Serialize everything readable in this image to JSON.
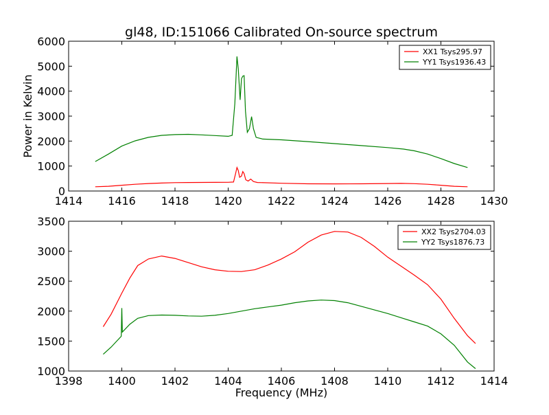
{
  "chart_data": [
    {
      "type": "line",
      "title": "gl48, ID:151066 Calibrated On-source spectrum",
      "xlabel": "",
      "ylabel": "Power in Kelvin",
      "xlim": [
        1414,
        1430
      ],
      "ylim": [
        0,
        6000
      ],
      "xticks": [
        1414,
        1416,
        1418,
        1420,
        1422,
        1424,
        1426,
        1428,
        1430
      ],
      "yticks": [
        0,
        1000,
        2000,
        3000,
        4000,
        5000,
        6000
      ],
      "legend_position": "top-right",
      "series": [
        {
          "name": "XX1 Tsys295.97",
          "color": "#ff0000",
          "points": [
            [
              1415.0,
              170
            ],
            [
              1415.5,
              190
            ],
            [
              1416.0,
              230
            ],
            [
              1416.5,
              270
            ],
            [
              1417.0,
              300
            ],
            [
              1417.5,
              320
            ],
            [
              1418.0,
              335
            ],
            [
              1418.5,
              340
            ],
            [
              1419.0,
              345
            ],
            [
              1419.5,
              348
            ],
            [
              1420.0,
              350
            ],
            [
              1420.2,
              360
            ],
            [
              1420.28,
              700
            ],
            [
              1420.33,
              940
            ],
            [
              1420.38,
              820
            ],
            [
              1420.43,
              550
            ],
            [
              1420.5,
              600
            ],
            [
              1420.55,
              780
            ],
            [
              1420.6,
              700
            ],
            [
              1420.66,
              450
            ],
            [
              1420.75,
              400
            ],
            [
              1420.85,
              480
            ],
            [
              1420.95,
              380
            ],
            [
              1421.1,
              340
            ],
            [
              1422.0,
              310
            ],
            [
              1423.0,
              290
            ],
            [
              1424.0,
              285
            ],
            [
              1425.0,
              290
            ],
            [
              1426.0,
              300
            ],
            [
              1426.5,
              305
            ],
            [
              1427.0,
              295
            ],
            [
              1427.5,
              270
            ],
            [
              1428.0,
              230
            ],
            [
              1428.5,
              190
            ],
            [
              1429.0,
              170
            ]
          ]
        },
        {
          "name": "YY1 Tsys1936.43",
          "color": "#008000",
          "points": [
            [
              1415.0,
              1180
            ],
            [
              1415.5,
              1480
            ],
            [
              1416.0,
              1800
            ],
            [
              1416.5,
              2010
            ],
            [
              1417.0,
              2150
            ],
            [
              1417.5,
              2230
            ],
            [
              1418.0,
              2260
            ],
            [
              1418.5,
              2270
            ],
            [
              1419.0,
              2250
            ],
            [
              1419.5,
              2220
            ],
            [
              1420.0,
              2190
            ],
            [
              1420.15,
              2230
            ],
            [
              1420.25,
              3500
            ],
            [
              1420.33,
              5390
            ],
            [
              1420.38,
              4900
            ],
            [
              1420.45,
              3650
            ],
            [
              1420.5,
              4500
            ],
            [
              1420.55,
              4600
            ],
            [
              1420.6,
              4620
            ],
            [
              1420.65,
              3200
            ],
            [
              1420.72,
              2350
            ],
            [
              1420.8,
              2500
            ],
            [
              1420.88,
              2980
            ],
            [
              1420.95,
              2500
            ],
            [
              1421.05,
              2150
            ],
            [
              1421.3,
              2080
            ],
            [
              1422.0,
              2050
            ],
            [
              1423.0,
              1980
            ],
            [
              1424.0,
              1900
            ],
            [
              1425.0,
              1820
            ],
            [
              1426.0,
              1740
            ],
            [
              1426.6,
              1680
            ],
            [
              1427.0,
              1610
            ],
            [
              1427.5,
              1480
            ],
            [
              1428.0,
              1300
            ],
            [
              1428.5,
              1100
            ],
            [
              1429.0,
              940
            ]
          ]
        }
      ]
    },
    {
      "type": "line",
      "title": "",
      "xlabel": "Frequency (MHz)",
      "ylabel": "",
      "xlim": [
        1398,
        1414
      ],
      "ylim": [
        1000,
        3500
      ],
      "xticks": [
        1398,
        1400,
        1402,
        1404,
        1406,
        1408,
        1410,
        1412,
        1414
      ],
      "yticks": [
        1000,
        1500,
        2000,
        2500,
        3000,
        3500
      ],
      "legend_position": "top-right",
      "series": [
        {
          "name": "XX2 Tsys2704.03",
          "color": "#ff0000",
          "points": [
            [
              1399.3,
              1740
            ],
            [
              1399.6,
              1950
            ],
            [
              1400.0,
              2300
            ],
            [
              1400.3,
              2550
            ],
            [
              1400.6,
              2760
            ],
            [
              1401.0,
              2870
            ],
            [
              1401.5,
              2920
            ],
            [
              1402.0,
              2880
            ],
            [
              1402.5,
              2810
            ],
            [
              1403.0,
              2740
            ],
            [
              1403.5,
              2690
            ],
            [
              1404.0,
              2665
            ],
            [
              1404.5,
              2660
            ],
            [
              1405.0,
              2690
            ],
            [
              1405.5,
              2770
            ],
            [
              1406.0,
              2870
            ],
            [
              1406.5,
              2990
            ],
            [
              1407.0,
              3150
            ],
            [
              1407.5,
              3270
            ],
            [
              1408.0,
              3330
            ],
            [
              1408.5,
              3320
            ],
            [
              1409.0,
              3230
            ],
            [
              1409.5,
              3080
            ],
            [
              1410.0,
              2900
            ],
            [
              1410.5,
              2750
            ],
            [
              1411.0,
              2600
            ],
            [
              1411.5,
              2440
            ],
            [
              1412.0,
              2200
            ],
            [
              1412.5,
              1880
            ],
            [
              1413.0,
              1590
            ],
            [
              1413.3,
              1460
            ]
          ]
        },
        {
          "name": "YY2 Tsys1876.73",
          "color": "#008000",
          "points": [
            [
              1399.3,
              1280
            ],
            [
              1399.6,
              1400
            ],
            [
              1399.98,
              1580
            ],
            [
              1400.0,
              2050
            ],
            [
              1400.02,
              1650
            ],
            [
              1400.3,
              1780
            ],
            [
              1400.6,
              1880
            ],
            [
              1401.0,
              1925
            ],
            [
              1401.5,
              1935
            ],
            [
              1402.0,
              1930
            ],
            [
              1402.5,
              1920
            ],
            [
              1403.0,
              1915
            ],
            [
              1403.5,
              1930
            ],
            [
              1404.0,
              1960
            ],
            [
              1404.5,
              2000
            ],
            [
              1405.0,
              2040
            ],
            [
              1405.5,
              2070
            ],
            [
              1406.0,
              2100
            ],
            [
              1406.5,
              2140
            ],
            [
              1407.0,
              2170
            ],
            [
              1407.5,
              2185
            ],
            [
              1408.0,
              2175
            ],
            [
              1408.5,
              2140
            ],
            [
              1409.0,
              2080
            ],
            [
              1409.5,
              2020
            ],
            [
              1410.0,
              1960
            ],
            [
              1410.5,
              1890
            ],
            [
              1411.0,
              1820
            ],
            [
              1411.5,
              1750
            ],
            [
              1412.0,
              1620
            ],
            [
              1412.5,
              1430
            ],
            [
              1413.0,
              1150
            ],
            [
              1413.3,
              1040
            ]
          ]
        }
      ]
    }
  ]
}
